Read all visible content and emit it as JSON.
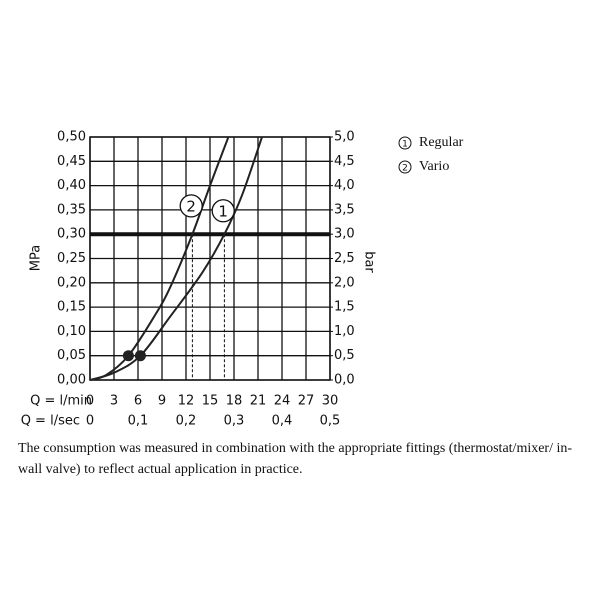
{
  "chart_data": {
    "type": "line",
    "x_label": "Q = l/min",
    "x2_label": "Q = l/sec",
    "y_label": "MPa",
    "y2_label": "bar",
    "xlim": [
      0,
      30
    ],
    "xticks": [
      0,
      3,
      6,
      9,
      12,
      15,
      18,
      21,
      24,
      27,
      30
    ],
    "x2lim": [
      0,
      0.5
    ],
    "x2ticks": [
      0,
      {
        "value": 0.1,
        "label": "0,1"
      },
      {
        "value": 0.2,
        "label": "0,2"
      },
      {
        "value": 0.3,
        "label": "0,3"
      },
      {
        "value": 0.4,
        "label": "0,4"
      },
      {
        "value": 0.5,
        "label": "0,5"
      }
    ],
    "ylim": [
      0,
      0.5
    ],
    "yticks": [
      {
        "value": 0,
        "label": "0,00"
      },
      {
        "value": 0.05,
        "label": "0,05"
      },
      {
        "value": 0.1,
        "label": "0,10"
      },
      {
        "value": 0.15,
        "label": "0,15"
      },
      {
        "value": 0.2,
        "label": "0,20"
      },
      {
        "value": 0.25,
        "label": "0,25"
      },
      {
        "value": 0.3,
        "label": "0,30"
      },
      {
        "value": 0.35,
        "label": "0,35"
      },
      {
        "value": 0.4,
        "label": "0,40"
      },
      {
        "value": 0.45,
        "label": "0,45"
      },
      {
        "value": 0.5,
        "label": "0,50"
      }
    ],
    "y2lim": [
      0,
      5
    ],
    "y2ticks": [
      {
        "value": 0,
        "label": "0,0"
      },
      {
        "value": 0.5,
        "label": "0,5"
      },
      {
        "value": 1,
        "label": "1,0"
      },
      {
        "value": 1.5,
        "label": "1,5"
      },
      {
        "value": 2,
        "label": "2,0"
      },
      {
        "value": 2.5,
        "label": "2,5"
      },
      {
        "value": 3,
        "label": "3,0"
      },
      {
        "value": 3.5,
        "label": "3,5"
      },
      {
        "value": 4,
        "label": "4,0"
      },
      {
        "value": 4.5,
        "label": "4,5"
      },
      {
        "value": 5,
        "label": "5,0"
      }
    ],
    "grid": true,
    "reference": {
      "y": 0.3,
      "x": [
        12.8,
        16.8
      ]
    },
    "series": [
      {
        "name": "Regular",
        "label": "1",
        "color": "#222222",
        "x": [
          0,
          3,
          6.3,
          10,
          14,
          16.8,
          19,
          21.5
        ],
        "values": [
          0,
          0.015,
          0.05,
          0.13,
          0.22,
          0.3,
          0.38,
          0.5
        ],
        "point": {
          "x": 6.3,
          "y": 0.05
        }
      },
      {
        "name": "Vario",
        "label": "2",
        "color": "#222222",
        "x": [
          0,
          2,
          4.8,
          8,
          10,
          12.8,
          15,
          17.3
        ],
        "values": [
          0,
          0.01,
          0.05,
          0.13,
          0.19,
          0.3,
          0.4,
          0.5
        ],
        "point": {
          "x": 4.8,
          "y": 0.05
        }
      }
    ],
    "note": "The consumption was measured in combination with the appropriate fittings (thermostat/mixer/ in-wall valve) to reflect actual application in practice."
  }
}
